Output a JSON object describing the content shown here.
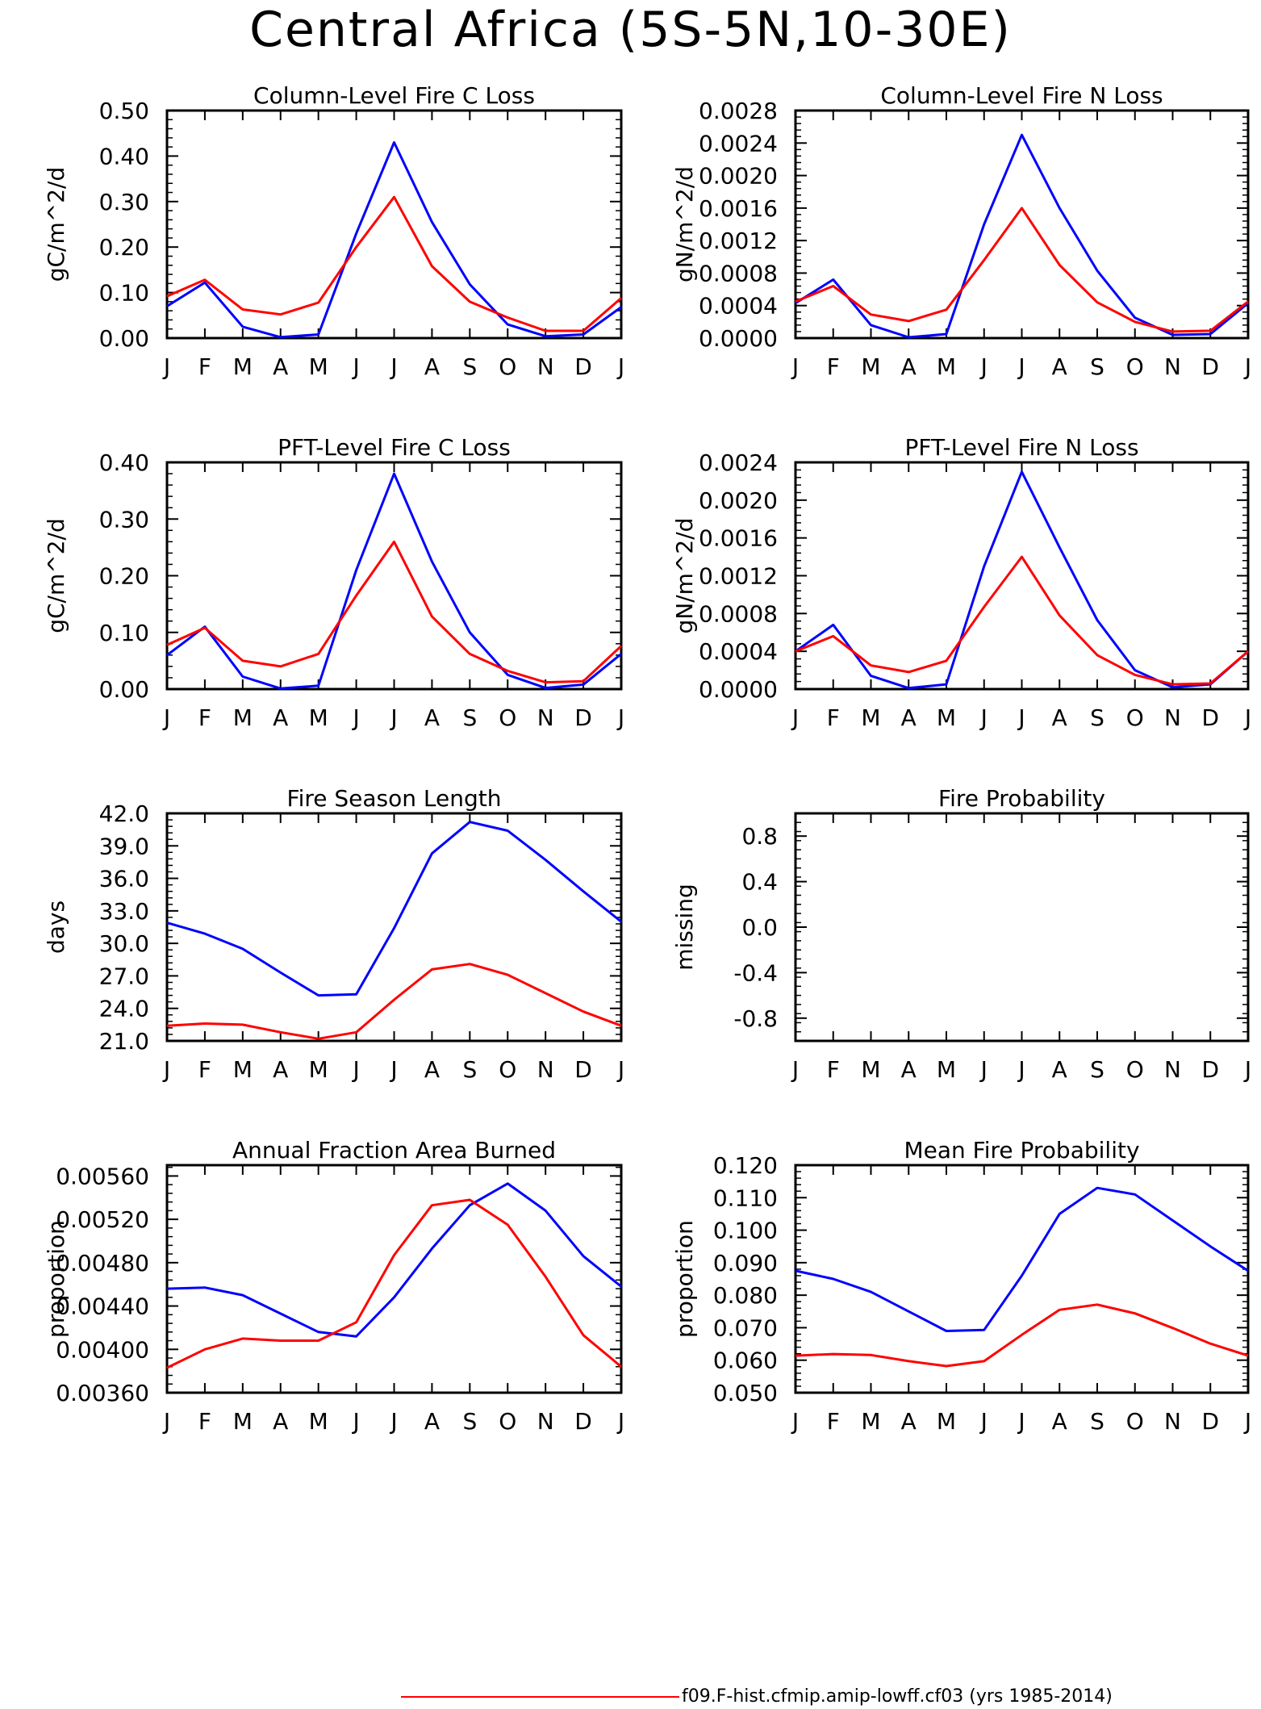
{
  "page_title": "Central Africa (5S-5N,10-30E)",
  "months": [
    "J",
    "F",
    "M",
    "A",
    "M",
    "J",
    "J",
    "A",
    "S",
    "O",
    "N",
    "D",
    "J"
  ],
  "colors": {
    "case": "#ff0000",
    "reference": "#0000ff",
    "axes": "#000000"
  },
  "legend": {
    "label": "f09.F-hist.cfmip.amip-lowff.cf03 (yrs 1985-2014)",
    "color": "#ff0000"
  },
  "chart_data": [
    {
      "type": "line",
      "title": "Column-Level Fire C Loss",
      "ylabel": "gC/m^2/d",
      "ylim": [
        0,
        0.5
      ],
      "yticks": [
        "0.00",
        "0.10",
        "0.20",
        "0.30",
        "0.40",
        "0.50"
      ],
      "series": [
        {
          "color": "#0000ff",
          "values": [
            0.07,
            0.122,
            0.025,
            0.002,
            0.008,
            0.23,
            0.43,
            0.255,
            0.118,
            0.03,
            0.004,
            0.008,
            0.068
          ]
        },
        {
          "color": "#ff0000",
          "values": [
            0.092,
            0.128,
            0.063,
            0.052,
            0.078,
            0.2,
            0.31,
            0.158,
            0.08,
            0.045,
            0.016,
            0.016,
            0.088
          ]
        }
      ]
    },
    {
      "type": "line",
      "title": "Column-Level Fire N Loss",
      "ylabel": "gN/m^2/d",
      "ylim": [
        0,
        0.0028
      ],
      "yticks": [
        "0.0000",
        "0.0004",
        "0.0008",
        "0.0012",
        "0.0016",
        "0.0020",
        "0.0024",
        "0.0028"
      ],
      "series": [
        {
          "color": "#0000ff",
          "values": [
            0.00043,
            0.00072,
            0.00016,
            1e-05,
            5e-05,
            0.0014,
            0.0025,
            0.0016,
            0.00083,
            0.00025,
            4e-05,
            5e-05,
            0.00043
          ]
        },
        {
          "color": "#ff0000",
          "values": [
            0.00045,
            0.00064,
            0.00029,
            0.00021,
            0.00035,
            0.00096,
            0.0016,
            0.0009,
            0.00044,
            0.0002,
            8e-05,
            9e-05,
            0.00045
          ]
        }
      ]
    },
    {
      "type": "line",
      "title": "PFT-Level Fire C Loss",
      "ylabel": "gC/m^2/d",
      "ylim": [
        0,
        0.4
      ],
      "yticks": [
        "0.00",
        "0.10",
        "0.20",
        "0.30",
        "0.40"
      ],
      "series": [
        {
          "color": "#0000ff",
          "values": [
            0.06,
            0.11,
            0.022,
            0.001,
            0.006,
            0.21,
            0.38,
            0.225,
            0.1,
            0.025,
            0.002,
            0.008,
            0.062
          ]
        },
        {
          "color": "#ff0000",
          "values": [
            0.078,
            0.108,
            0.05,
            0.04,
            0.062,
            0.165,
            0.26,
            0.128,
            0.062,
            0.032,
            0.012,
            0.014,
            0.076
          ]
        }
      ]
    },
    {
      "type": "line",
      "title": "PFT-Level Fire N Loss",
      "ylabel": "gN/m^2/d",
      "ylim": [
        0,
        0.0024
      ],
      "yticks": [
        "0.0000",
        "0.0004",
        "0.0008",
        "0.0012",
        "0.0016",
        "0.0020",
        "0.0024"
      ],
      "series": [
        {
          "color": "#0000ff",
          "values": [
            0.0004,
            0.00068,
            0.00014,
            1e-05,
            5e-05,
            0.0013,
            0.0023,
            0.0015,
            0.00073,
            0.0002,
            2e-05,
            5e-05,
            0.0004
          ]
        },
        {
          "color": "#ff0000",
          "values": [
            0.0004,
            0.00056,
            0.00025,
            0.00018,
            0.0003,
            0.00087,
            0.0014,
            0.00078,
            0.00036,
            0.00015,
            5e-05,
            6e-05,
            0.0004
          ]
        }
      ]
    },
    {
      "type": "line",
      "title": "Fire Season Length",
      "ylabel": "days",
      "ylim": [
        21,
        42
      ],
      "yticks": [
        "21.0",
        "24.0",
        "27.0",
        "30.0",
        "33.0",
        "36.0",
        "39.0",
        "42.0"
      ],
      "series": [
        {
          "color": "#0000ff",
          "values": [
            31.9,
            30.9,
            29.5,
            27.3,
            25.2,
            25.3,
            31.4,
            38.3,
            41.2,
            40.4,
            37.7,
            34.8,
            32.0
          ]
        },
        {
          "color": "#ff0000",
          "values": [
            22.4,
            22.6,
            22.5,
            21.8,
            21.2,
            21.8,
            24.8,
            27.6,
            28.1,
            27.1,
            25.4,
            23.7,
            22.4
          ]
        }
      ]
    },
    {
      "type": "line",
      "title": "Fire Probability",
      "ylabel": "missing",
      "ylim": [
        -1,
        1
      ],
      "yticks": [
        "-0.8",
        "-0.4",
        "0.0",
        "0.4",
        "0.8"
      ],
      "series": []
    },
    {
      "type": "line",
      "title": "Annual Fraction Area Burned",
      "ylabel": "proportion",
      "ylim": [
        0.0036,
        0.0057
      ],
      "yticks": [
        "0.00360",
        "0.00400",
        "0.00440",
        "0.00480",
        "0.00520",
        "0.00560"
      ],
      "series": [
        {
          "color": "#0000ff",
          "values": [
            0.00456,
            0.00457,
            0.0045,
            0.00433,
            0.00416,
            0.00412,
            0.00448,
            0.00493,
            0.00533,
            0.00553,
            0.00528,
            0.00486,
            0.00458
          ]
        },
        {
          "color": "#ff0000",
          "values": [
            0.00383,
            0.004,
            0.0041,
            0.00408,
            0.00408,
            0.00425,
            0.00487,
            0.00533,
            0.00538,
            0.00515,
            0.00467,
            0.00413,
            0.00384
          ]
        }
      ]
    },
    {
      "type": "line",
      "title": "Mean Fire Probability",
      "ylabel": "proportion",
      "ylim": [
        0.05,
        0.12
      ],
      "yticks": [
        "0.050",
        "0.060",
        "0.070",
        "0.080",
        "0.090",
        "0.100",
        "0.110",
        "0.120"
      ],
      "series": [
        {
          "color": "#0000ff",
          "values": [
            0.0875,
            0.085,
            0.081,
            0.075,
            0.069,
            0.0693,
            0.086,
            0.105,
            0.113,
            0.111,
            0.103,
            0.095,
            0.0875
          ]
        },
        {
          "color": "#ff0000",
          "values": [
            0.0614,
            0.0619,
            0.0616,
            0.0597,
            0.0582,
            0.0597,
            0.0678,
            0.0755,
            0.0771,
            0.0744,
            0.0699,
            0.0651,
            0.0614
          ]
        }
      ]
    }
  ]
}
